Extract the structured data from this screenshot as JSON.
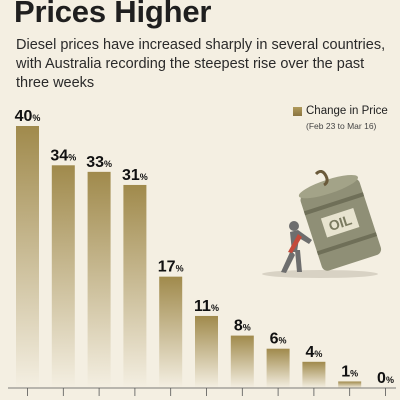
{
  "header": {
    "title": "Prices Higher",
    "subtitle": "Diesel prices have increased sharply in several countries, with Australia recording the steepest rise over the past three weeks"
  },
  "legend": {
    "label": "Change in Price",
    "note": "(Feb 23 to Mar 16)"
  },
  "illustration": {
    "barrel_label": "OIL"
  },
  "chart_data": {
    "type": "bar",
    "title": "Prices Higher",
    "categories": [
      "",
      "",
      "",
      "",
      "",
      "",
      "",
      "",
      "",
      "",
      ""
    ],
    "series": [
      {
        "name": "Change in Price",
        "values": [
          40,
          34,
          33,
          31,
          17,
          11,
          8,
          6,
          4,
          1,
          0
        ]
      }
    ],
    "value_suffix": "%",
    "ylim": [
      0,
      40
    ],
    "grid": false,
    "legend_position": "top-right",
    "colors": {
      "bar_top": "#a08a4c",
      "bar_bottom": "#f4efe2",
      "label": "#111111"
    }
  }
}
